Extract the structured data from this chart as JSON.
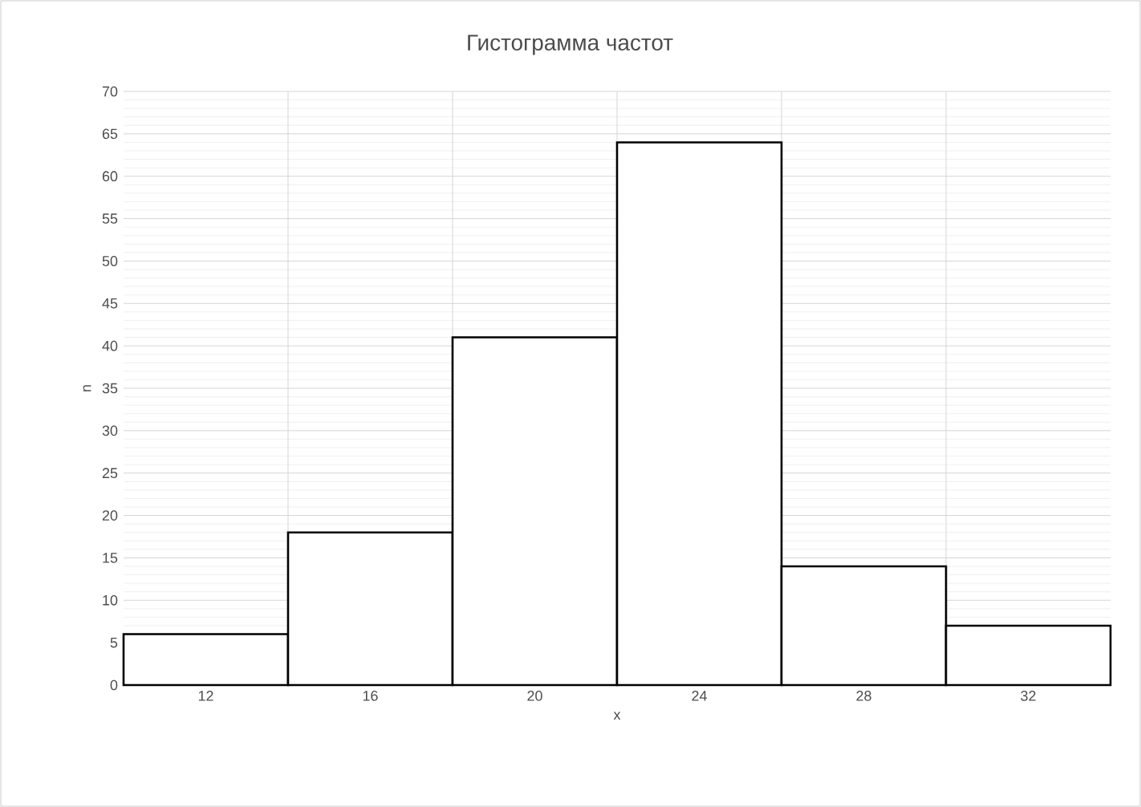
{
  "chart_data": {
    "type": "bar",
    "title": "Гистограмма частот",
    "xlabel": "x",
    "ylabel": "n",
    "categories": [
      "12",
      "16",
      "20",
      "24",
      "28",
      "32"
    ],
    "values": [
      6,
      18,
      41,
      64,
      14,
      7
    ],
    "color": "#ffffff",
    "ylim": [
      0,
      70
    ],
    "yticks": [
      0,
      5,
      10,
      15,
      20,
      25,
      30,
      35,
      40,
      45,
      50,
      55,
      60,
      65,
      70
    ],
    "grid": true
  }
}
